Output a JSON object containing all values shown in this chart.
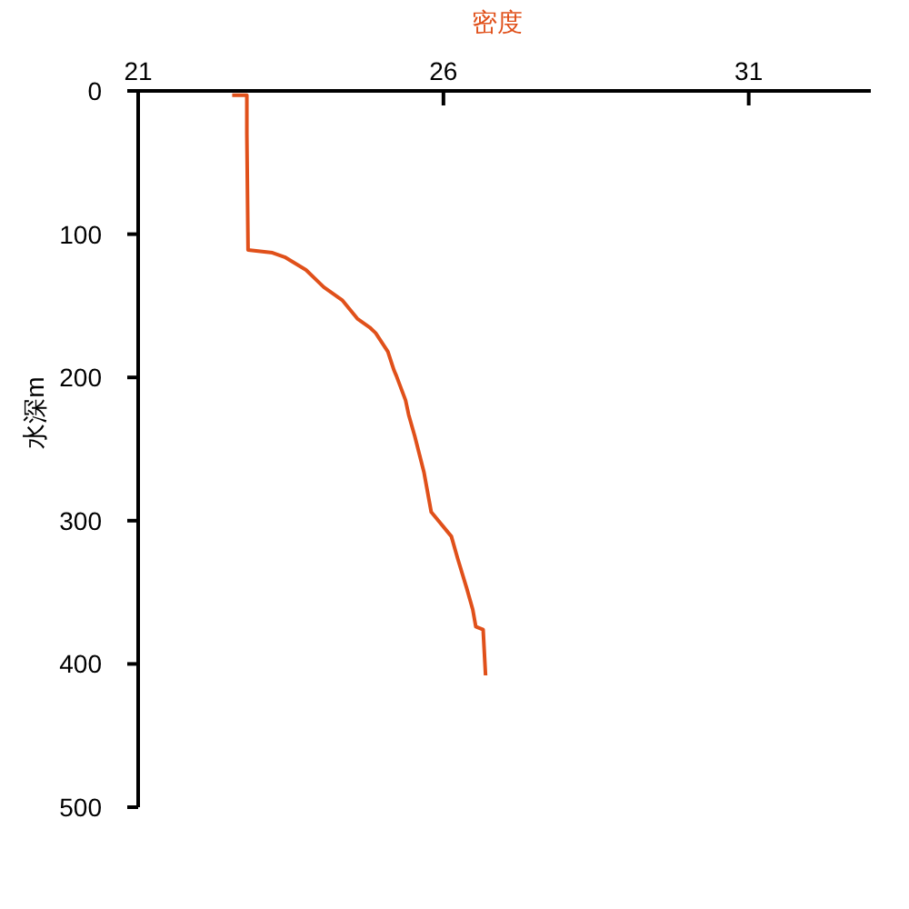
{
  "chart_data": {
    "type": "line",
    "xlabel": "密度",
    "ylabel": "水深m",
    "xlim": [
      21,
      33
    ],
    "xticks": [
      21,
      26,
      31
    ],
    "ylim": [
      500,
      0
    ],
    "yticks": [
      0,
      100,
      200,
      300,
      400,
      500
    ],
    "grid": false,
    "marker": "none",
    "line_style": "solid",
    "series": [
      {
        "color": "#e0501a",
        "x": [
          22.54,
          22.78,
          22.78,
          22.8,
          23.2,
          23.4,
          23.75,
          24.04,
          24.34,
          24.59,
          24.79,
          24.89,
          25.09,
          25.19,
          25.23,
          25.38,
          25.43,
          25.53,
          25.68,
          25.8,
          26.13,
          26.23,
          26.38,
          26.48,
          26.53,
          26.65,
          26.69
        ],
        "values": [
          3,
          3,
          30,
          111,
          113,
          116,
          125,
          137,
          146,
          159,
          165,
          169,
          182,
          195,
          199,
          216,
          226,
          241,
          266,
          294,
          311,
          326,
          347,
          362,
          374,
          376,
          408
        ]
      }
    ]
  }
}
